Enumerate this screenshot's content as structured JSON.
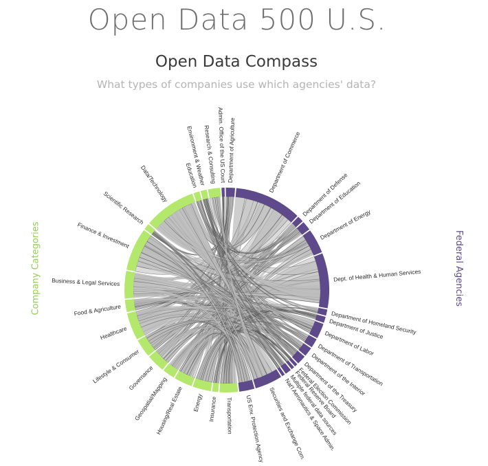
{
  "header": {
    "site_title": "Open Data 500 U.S.",
    "chart_title": "Open Data Compass",
    "chart_subtitle": "What types of companies use which agencies' data?"
  },
  "sides": {
    "left": "Company Categories",
    "right": "Federal Agencies"
  },
  "colors": {
    "category": "#b3e86c",
    "agency": "#5e4a8b",
    "chord": "#bdbdbd",
    "chord_dark": "#3a3a3a"
  },
  "chart_data": {
    "type": "chord",
    "title": "Open Data Compass",
    "subtitle": "What types of companies use which agencies' data?",
    "groups": [
      {
        "name": "Admin. Office of the US Court",
        "kind": "agency",
        "value": 1
      },
      {
        "name": "Department of Agriculture",
        "kind": "agency",
        "value": 3
      },
      {
        "name": "Department of Commerce",
        "kind": "agency",
        "value": 22
      },
      {
        "name": "Department of Defense",
        "kind": "agency",
        "value": 2
      },
      {
        "name": "Department of Education",
        "kind": "agency",
        "value": 3
      },
      {
        "name": "Department of Energy",
        "kind": "agency",
        "value": 8
      },
      {
        "name": "Dept. of Health & Human Services",
        "kind": "agency",
        "value": 18
      },
      {
        "name": "Department of Homeland Security",
        "kind": "agency",
        "value": 2
      },
      {
        "name": "Department of Justice",
        "kind": "agency",
        "value": 2
      },
      {
        "name": "Department of Labor",
        "kind": "agency",
        "value": 5
      },
      {
        "name": "Department of Transportation",
        "kind": "agency",
        "value": 3
      },
      {
        "name": "Department of the Interior",
        "kind": "agency",
        "value": 3
      },
      {
        "name": "Department of the Treasury",
        "kind": "agency",
        "value": 3
      },
      {
        "name": "Federal Election Commission",
        "kind": "agency",
        "value": 1
      },
      {
        "name": "Federal Reserve Board",
        "kind": "agency",
        "value": 1
      },
      {
        "name": "Multiple federal data sources",
        "kind": "agency",
        "value": 2
      },
      {
        "name": "Nat'l Aeronautics & Space Admin.",
        "kind": "agency",
        "value": 1
      },
      {
        "name": "Securities and Exchange Com.",
        "kind": "agency",
        "value": 9
      },
      {
        "name": "US Env. Protection Agency",
        "kind": "agency",
        "value": 5
      },
      {
        "name": "Transportation",
        "kind": "category",
        "value": 6
      },
      {
        "name": "Insurance",
        "kind": "category",
        "value": 2
      },
      {
        "name": "Energy",
        "kind": "category",
        "value": 6
      },
      {
        "name": "Housing/Real Estate",
        "kind": "category",
        "value": 6
      },
      {
        "name": "Geospatial/Mapping",
        "kind": "category",
        "value": 4
      },
      {
        "name": "Governance",
        "kind": "category",
        "value": 6
      },
      {
        "name": "Lifestyle & Consumer",
        "kind": "category",
        "value": 6
      },
      {
        "name": "Healthcare",
        "kind": "category",
        "value": 9
      },
      {
        "name": "Food & Agriculture",
        "kind": "category",
        "value": 4
      },
      {
        "name": "Business & Legal Services",
        "kind": "category",
        "value": 9
      },
      {
        "name": "Finance & Investment",
        "kind": "category",
        "value": 14
      },
      {
        "name": "Scientific Research",
        "kind": "category",
        "value": 2
      },
      {
        "name": "Data/Technology",
        "kind": "category",
        "value": 17
      },
      {
        "name": "Education",
        "kind": "category",
        "value": 2
      },
      {
        "name": "Environment & Weather",
        "kind": "category",
        "value": 2
      },
      {
        "name": "Research & Consulting",
        "kind": "category",
        "value": 4
      }
    ]
  }
}
